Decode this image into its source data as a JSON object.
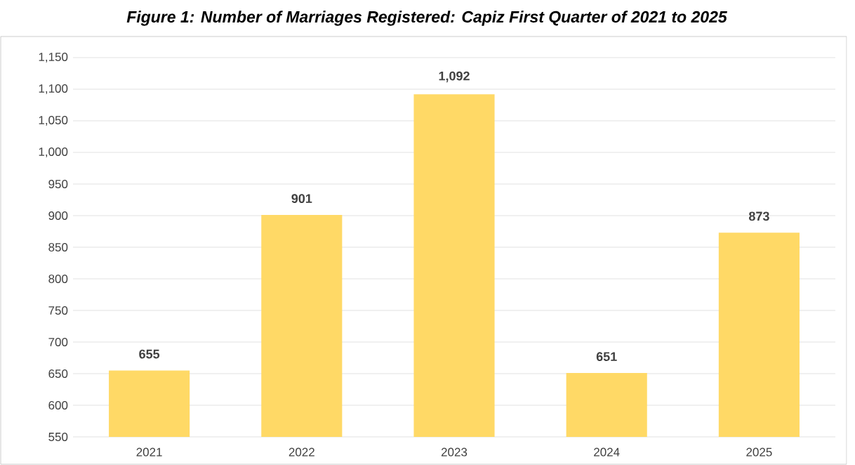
{
  "chart_data": {
    "type": "bar",
    "title": "Figure 1: Number of Marriages Registered: Capiz First Quarter of 2021 to 2025",
    "categories": [
      "2021",
      "2022",
      "2023",
      "2024",
      "2025"
    ],
    "values": [
      655,
      901,
      1092,
      651,
      873
    ],
    "value_labels": [
      "655",
      "901",
      "1,092",
      "651",
      "873"
    ],
    "color": "#ffd966",
    "ylim": [
      550,
      1150
    ],
    "yticks": [
      550,
      600,
      650,
      700,
      750,
      800,
      850,
      900,
      950,
      {
        "value": 1000,
        "label": "1,000"
      },
      {
        "value": 1050,
        "label": "1,050"
      },
      {
        "value": 1100,
        "label": "1,100"
      },
      {
        "value": 1150,
        "label": "1,150"
      }
    ],
    "grid": "y"
  }
}
